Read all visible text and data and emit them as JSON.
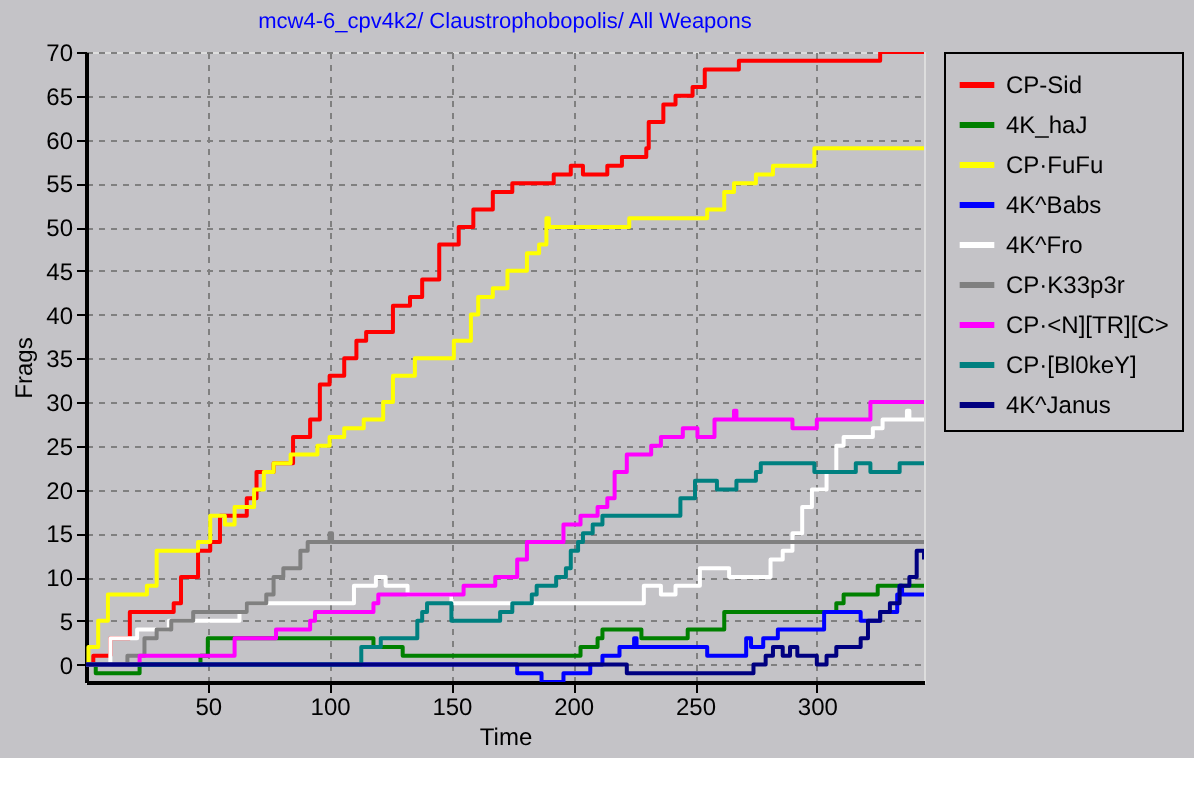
{
  "chart_data": {
    "type": "step",
    "title": "mcw4-6_cpv4k2/ Claustrophobopolis/ All Weapons",
    "xlabel": "Time",
    "ylabel": "Frags",
    "xlim": [
      0,
      344
    ],
    "ylim": [
      -2,
      70
    ],
    "xticks": [
      50,
      100,
      150,
      200,
      250,
      300
    ],
    "yticks": [
      0,
      5,
      10,
      15,
      20,
      25,
      30,
      35,
      40,
      45,
      50,
      55,
      60,
      65,
      70
    ],
    "grid": true,
    "legend": "right",
    "line_style": "solid",
    "marker": "none",
    "series": [
      {
        "name": "CP-Sid",
        "color": "#ff0000",
        "x": [
          0,
          3,
          10,
          18,
          36,
          39,
          46,
          51,
          55,
          66,
          70,
          77,
          85,
          92,
          96,
          100,
          106,
          111,
          115,
          126,
          133,
          138,
          145,
          153,
          159,
          167,
          175,
          192,
          199,
          204,
          214,
          220,
          230,
          231,
          237,
          242,
          249,
          254,
          268,
          326,
          344
        ],
        "values": [
          0,
          1,
          3,
          6,
          7,
          10,
          13,
          14,
          17,
          19,
          22,
          23,
          26,
          28,
          32,
          33,
          35,
          37,
          38,
          41,
          42,
          44,
          48,
          50,
          52,
          54,
          55,
          56,
          57,
          56,
          57,
          58,
          59,
          62,
          64,
          65,
          66,
          68,
          69,
          70,
          70
        ]
      },
      {
        "name": "4K_haJ",
        "color": "#008000",
        "x": [
          0,
          4,
          22,
          47,
          50,
          118,
          130,
          203,
          210,
          212,
          228,
          247,
          262,
          308,
          311,
          325,
          344
        ],
        "values": [
          0,
          -1,
          0,
          1,
          3,
          2,
          1,
          2,
          3,
          4,
          3,
          4,
          6,
          7,
          8,
          9,
          9
        ]
      },
      {
        "name": "CP·FuFu",
        "color": "#ffff00",
        "x": [
          0,
          1,
          5,
          9,
          25,
          29,
          46,
          51,
          57,
          61,
          69,
          73,
          77,
          84,
          95,
          100,
          106,
          114,
          122,
          126,
          135,
          151,
          158,
          161,
          167,
          173,
          181,
          186,
          189,
          190,
          223,
          255,
          262,
          266,
          275,
          282,
          299,
          344
        ],
        "values": [
          0,
          2,
          5,
          8,
          9,
          13,
          14,
          17,
          16,
          18,
          20,
          22,
          23,
          24,
          25,
          26,
          27,
          28,
          30,
          33,
          35,
          37,
          40,
          42,
          43,
          45,
          47,
          48,
          51,
          50,
          51,
          52,
          54,
          55,
          56,
          57,
          59,
          59
        ]
      },
      {
        "name": "4K^Babs",
        "color": "#0000ff",
        "x": [
          0,
          177,
          187,
          196,
          207,
          212,
          219,
          225,
          226,
          255,
          271,
          273,
          278,
          284,
          303,
          318,
          326,
          333,
          334,
          335,
          344
        ],
        "values": [
          0,
          -1,
          -2,
          -1,
          0,
          1,
          2,
          3,
          2,
          1,
          3,
          2,
          3,
          4,
          6,
          5,
          6,
          8,
          9,
          8,
          8
        ]
      },
      {
        "name": "4K^Fro",
        "color": "#ffffff",
        "x": [
          0,
          10,
          21,
          34,
          63,
          66,
          110,
          119,
          123,
          132,
          150,
          229,
          236,
          242,
          252,
          264,
          281,
          286,
          290,
          294,
          298,
          304,
          308,
          311,
          323,
          327,
          337,
          338,
          344
        ],
        "values": [
          0,
          3,
          4,
          5,
          6,
          7,
          9,
          10,
          9,
          8,
          7,
          9,
          8,
          9,
          11,
          10,
          12,
          13,
          15,
          18,
          20,
          22,
          25,
          26,
          27,
          28,
          29,
          28,
          28
        ]
      },
      {
        "name": "CP·K33p3r",
        "color": "#808080",
        "x": [
          0,
          17,
          24,
          29,
          35,
          44,
          66,
          74,
          77,
          81,
          88,
          91,
          100,
          101,
          344
        ],
        "values": [
          0,
          1,
          3,
          4,
          5,
          6,
          7,
          8,
          10,
          11,
          13,
          14,
          15,
          14,
          14
        ]
      },
      {
        "name": "CP·<N][TR][C>",
        "color": "#ff00ff",
        "x": [
          0,
          22,
          61,
          78,
          92,
          94,
          118,
          120,
          155,
          168,
          177,
          181,
          196,
          203,
          210,
          214,
          217,
          222,
          232,
          236,
          245,
          251,
          258,
          266,
          267,
          290,
          300,
          322,
          344
        ],
        "values": [
          0,
          1,
          3,
          4,
          5,
          6,
          7,
          8,
          9,
          10,
          12,
          14,
          16,
          17,
          18,
          19,
          22,
          24,
          25,
          26,
          27,
          26,
          28,
          29,
          28,
          27,
          28,
          30,
          30
        ]
      },
      {
        "name": "CP·[Bl0keY]",
        "color": "#008080",
        "x": [
          0,
          113,
          121,
          136,
          138,
          140,
          150,
          170,
          175,
          183,
          185,
          193,
          197,
          199,
          202,
          204,
          208,
          212,
          244,
          250,
          259,
          267,
          275,
          277,
          299,
          316,
          322,
          334,
          344
        ],
        "values": [
          0,
          2,
          3,
          5,
          6,
          7,
          5,
          6,
          7,
          8,
          9,
          10,
          11,
          13,
          14,
          15,
          16,
          17,
          19,
          21,
          20,
          21,
          22,
          23,
          22,
          23,
          22,
          23,
          23
        ]
      },
      {
        "name": "4K^Janus",
        "color": "#000080",
        "x": [
          0,
          222,
          274,
          279,
          282,
          286,
          289,
          292,
          300,
          304,
          308,
          318,
          321,
          326,
          330,
          334,
          338,
          341,
          344
        ],
        "values": [
          0,
          -1,
          0,
          1,
          2,
          1,
          2,
          1,
          0,
          1,
          2,
          3,
          5,
          6,
          7,
          9,
          10,
          13,
          12
        ]
      }
    ]
  }
}
